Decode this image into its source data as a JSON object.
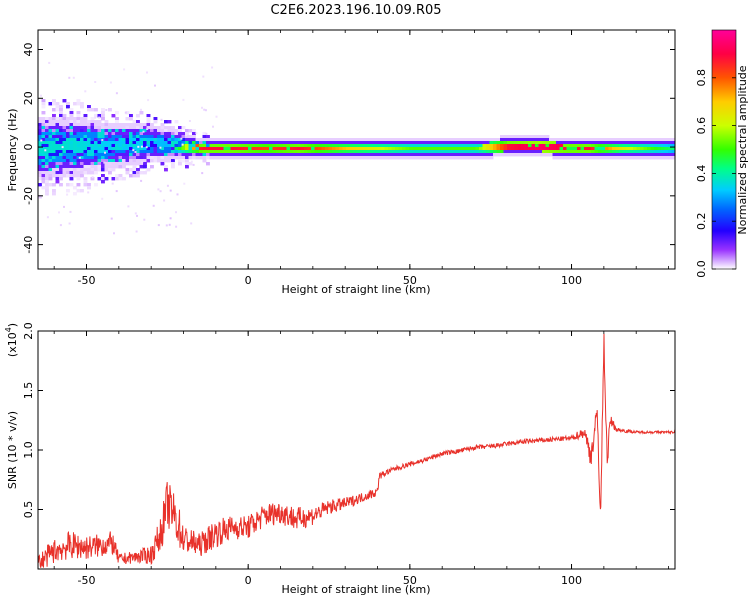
{
  "figure": {
    "title": "C2E6.2023.196.10.09.R05"
  },
  "colors": {
    "snr_line": "#e8312a",
    "colormap": [
      "#ffffff",
      "#e6ccff",
      "#9933ff",
      "#2200ff",
      "#0066ff",
      "#00ccff",
      "#00ff88",
      "#33ff00",
      "#ccff00",
      "#ffcc00",
      "#ff5500",
      "#ff0044",
      "#ff0099"
    ]
  },
  "chart_data": [
    {
      "type": "heatmap",
      "title": "C2E6.2023.196.10.09.R05",
      "xlabel": "Height of straight line (km)",
      "ylabel": "Frequency (Hz)",
      "xlim": [
        -65,
        132
      ],
      "ylim": [
        -50,
        48
      ],
      "x_ticks": [
        -50,
        0,
        50,
        100
      ],
      "x_tick_labels": [
        "-50",
        "0",
        "50",
        "100"
      ],
      "y_ticks": [
        -40,
        -20,
        0,
        20,
        40
      ],
      "y_tick_labels": [
        "-40",
        "-20",
        "0",
        "20",
        "40"
      ],
      "colorbar": {
        "label": "Normalized spectral amplitude",
        "range": [
          0,
          1
        ],
        "ticks": [
          0.0,
          0.2,
          0.4,
          0.6,
          0.8
        ],
        "tick_labels": [
          "0.0",
          "0.2",
          "0.4",
          "0.6",
          "0.8"
        ]
      },
      "band": {
        "x": [
          -65,
          -55,
          -45,
          -35,
          -25,
          -15,
          -5,
          5,
          15,
          30,
          50,
          70,
          80,
          90,
          98,
          105,
          115,
          132
        ],
        "center_freq_hz": [
          0,
          1,
          1,
          2,
          2,
          0,
          0,
          0,
          0,
          0,
          0,
          0,
          1,
          1,
          0,
          0,
          0,
          0
        ],
        "half_width_hz": [
          9,
          9,
          7,
          6,
          5,
          3,
          3,
          3,
          3,
          3,
          3,
          3,
          3,
          3,
          3,
          3,
          3,
          3
        ],
        "peak_amplitude": [
          0.45,
          0.45,
          0.42,
          0.42,
          0.4,
          0.9,
          0.9,
          0.85,
          0.9,
          0.75,
          0.6,
          0.6,
          0.9,
          0.95,
          0.9,
          0.9,
          0.7,
          0.5
        ]
      }
    },
    {
      "type": "line",
      "title": "",
      "xlabel": "Height of straight line (km)",
      "ylabel": "SNR (10 * v/v)",
      "y_multiplier": "(x10",
      "y_multiplier_exp": "4",
      "y_multiplier_close": ")",
      "xlim": [
        -65,
        132
      ],
      "ylim": [
        0,
        2.0
      ],
      "x_ticks": [
        -50,
        0,
        50,
        100
      ],
      "x_tick_labels": [
        "-50",
        "0",
        "50",
        "100"
      ],
      "y_ticks": [
        0.5,
        1.0,
        1.5,
        2.0
      ],
      "y_tick_labels": [
        "0.5",
        "1.0",
        "1.5",
        "2.0"
      ],
      "series": [
        {
          "x": [
            -65,
            -60,
            -55,
            -50,
            -45,
            -42,
            -40,
            -35,
            -30,
            -27,
            -25,
            -22,
            -20,
            -15,
            -10,
            -5,
            0,
            5,
            10,
            15,
            20,
            25,
            30,
            35,
            40,
            40.5,
            45,
            50,
            55,
            60,
            65,
            70,
            75,
            80,
            85,
            90,
            95,
            100,
            104,
            106,
            108,
            109,
            110,
            111,
            112,
            114,
            120,
            125,
            132
          ],
          "y": [
            0.05,
            0.15,
            0.2,
            0.18,
            0.2,
            0.22,
            0.08,
            0.1,
            0.12,
            0.3,
            0.55,
            0.4,
            0.25,
            0.2,
            0.3,
            0.35,
            0.35,
            0.45,
            0.48,
            0.42,
            0.45,
            0.52,
            0.55,
            0.6,
            0.65,
            0.78,
            0.84,
            0.88,
            0.92,
            0.97,
            0.99,
            1.02,
            1.03,
            1.05,
            1.07,
            1.08,
            1.09,
            1.1,
            1.15,
            0.95,
            1.3,
            0.4,
            1.95,
            0.9,
            1.25,
            1.17,
            1.15,
            1.15,
            1.15
          ],
          "noise_amplitude": [
            0.08,
            0.1,
            0.12,
            0.1,
            0.1,
            0.1,
            0.05,
            0.05,
            0.08,
            0.15,
            0.2,
            0.2,
            0.12,
            0.1,
            0.12,
            0.1,
            0.1,
            0.1,
            0.1,
            0.1,
            0.08,
            0.06,
            0.05,
            0.04,
            0.04,
            0.03,
            0.02,
            0.02,
            0.02,
            0.02,
            0.02,
            0.02,
            0.02,
            0.02,
            0.02,
            0.02,
            0.02,
            0.02,
            0.05,
            0.1,
            0.1,
            0.1,
            0.1,
            0.1,
            0.05,
            0.02,
            0.01,
            0.01,
            0.01
          ]
        }
      ]
    }
  ]
}
